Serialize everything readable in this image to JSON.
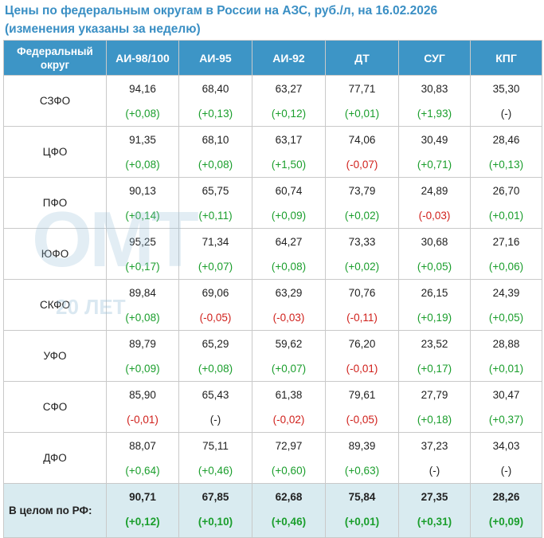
{
  "title_line1": "Цены по федеральным округам в России на АЗС, руб./л, на 16.02.2026",
  "title_line2": "(изменения указаны за неделю)",
  "headers": {
    "region": "Федеральный округ",
    "ai98": "АИ-98/100",
    "ai95": "АИ-95",
    "ai92": "АИ-92",
    "dt": "ДТ",
    "sug": "СУГ",
    "kpg": "КПГ"
  },
  "watermark": {
    "main": "ОМТ",
    "sub": "20 ЛЕТ"
  },
  "colors": {
    "header_bg": "#3d95c6",
    "title": "#3a8fc4",
    "positive": "#1a9e2c",
    "negative": "#d0201b",
    "total_bg": "#d9ebf0"
  },
  "rows": [
    {
      "region": "СЗФО",
      "cells": [
        {
          "value": "94,16",
          "change": "(+0,08)",
          "sign": "pos"
        },
        {
          "value": "68,40",
          "change": "(+0,13)",
          "sign": "pos"
        },
        {
          "value": "63,27",
          "change": "(+0,12)",
          "sign": "pos"
        },
        {
          "value": "77,71",
          "change": "(+0,01)",
          "sign": "pos"
        },
        {
          "value": "30,83",
          "change": "(+1,93)",
          "sign": "pos"
        },
        {
          "value": "35,30",
          "change": "(-)",
          "sign": "neu"
        }
      ]
    },
    {
      "region": "ЦФО",
      "cells": [
        {
          "value": "91,35",
          "change": "(+0,08)",
          "sign": "pos"
        },
        {
          "value": "68,10",
          "change": "(+0,08)",
          "sign": "pos"
        },
        {
          "value": "63,17",
          "change": "(+1,50)",
          "sign": "pos"
        },
        {
          "value": "74,06",
          "change": "(-0,07)",
          "sign": "neg"
        },
        {
          "value": "30,49",
          "change": "(+0,71)",
          "sign": "pos"
        },
        {
          "value": "28,46",
          "change": "(+0,13)",
          "sign": "pos"
        }
      ]
    },
    {
      "region": "ПФО",
      "cells": [
        {
          "value": "90,13",
          "change": "(+0,14)",
          "sign": "pos"
        },
        {
          "value": "65,75",
          "change": "(+0,11)",
          "sign": "pos"
        },
        {
          "value": "60,74",
          "change": "(+0,09)",
          "sign": "pos"
        },
        {
          "value": "73,79",
          "change": "(+0,02)",
          "sign": "pos"
        },
        {
          "value": "24,89",
          "change": "(-0,03)",
          "sign": "neg"
        },
        {
          "value": "26,70",
          "change": "(+0,01)",
          "sign": "pos"
        }
      ]
    },
    {
      "region": "ЮФО",
      "cells": [
        {
          "value": "95,25",
          "change": "(+0,17)",
          "sign": "pos"
        },
        {
          "value": "71,34",
          "change": "(+0,07)",
          "sign": "pos"
        },
        {
          "value": "64,27",
          "change": "(+0,08)",
          "sign": "pos"
        },
        {
          "value": "73,33",
          "change": "(+0,02)",
          "sign": "pos"
        },
        {
          "value": "30,68",
          "change": "(+0,05)",
          "sign": "pos"
        },
        {
          "value": "27,16",
          "change": "(+0,06)",
          "sign": "pos"
        }
      ]
    },
    {
      "region": "СКФО",
      "cells": [
        {
          "value": "89,84",
          "change": "(+0,08)",
          "sign": "pos"
        },
        {
          "value": "69,06",
          "change": "(-0,05)",
          "sign": "neg"
        },
        {
          "value": "63,29",
          "change": "(-0,03)",
          "sign": "neg"
        },
        {
          "value": "70,76",
          "change": "(-0,11)",
          "sign": "neg"
        },
        {
          "value": "26,15",
          "change": "(+0,19)",
          "sign": "pos"
        },
        {
          "value": "24,39",
          "change": "(+0,05)",
          "sign": "pos"
        }
      ]
    },
    {
      "region": "УФО",
      "cells": [
        {
          "value": "89,79",
          "change": "(+0,09)",
          "sign": "pos"
        },
        {
          "value": "65,29",
          "change": "(+0,08)",
          "sign": "pos"
        },
        {
          "value": "59,62",
          "change": "(+0,07)",
          "sign": "pos"
        },
        {
          "value": "76,20",
          "change": "(-0,01)",
          "sign": "neg"
        },
        {
          "value": "23,52",
          "change": "(+0,17)",
          "sign": "pos"
        },
        {
          "value": "28,88",
          "change": "(+0,01)",
          "sign": "pos"
        }
      ]
    },
    {
      "region": "СФО",
      "cells": [
        {
          "value": "85,90",
          "change": "(-0,01)",
          "sign": "neg"
        },
        {
          "value": "65,43",
          "change": "(-)",
          "sign": "neu"
        },
        {
          "value": "61,38",
          "change": "(-0,02)",
          "sign": "neg"
        },
        {
          "value": "79,61",
          "change": "(-0,05)",
          "sign": "neg"
        },
        {
          "value": "27,79",
          "change": "(+0,18)",
          "sign": "pos"
        },
        {
          "value": "30,47",
          "change": "(+0,37)",
          "sign": "pos"
        }
      ]
    },
    {
      "region": "ДФО",
      "cells": [
        {
          "value": "88,07",
          "change": "(+0,64)",
          "sign": "pos"
        },
        {
          "value": "75,11",
          "change": "(+0,46)",
          "sign": "pos"
        },
        {
          "value": "72,97",
          "change": "(+0,60)",
          "sign": "pos"
        },
        {
          "value": "89,39",
          "change": "(+0,63)",
          "sign": "pos"
        },
        {
          "value": "37,23",
          "change": "(-)",
          "sign": "neu"
        },
        {
          "value": "34,03",
          "change": "(-)",
          "sign": "neu"
        }
      ]
    }
  ],
  "total": {
    "region": "В целом по РФ:",
    "cells": [
      {
        "value": "90,71",
        "change": "(+0,12)",
        "sign": "pos"
      },
      {
        "value": "67,85",
        "change": "(+0,10)",
        "sign": "pos"
      },
      {
        "value": "62,68",
        "change": "(+0,46)",
        "sign": "pos"
      },
      {
        "value": "75,84",
        "change": "(+0,01)",
        "sign": "pos"
      },
      {
        "value": "27,35",
        "change": "(+0,31)",
        "sign": "pos"
      },
      {
        "value": "28,26",
        "change": "(+0,09)",
        "sign": "pos"
      }
    ]
  }
}
